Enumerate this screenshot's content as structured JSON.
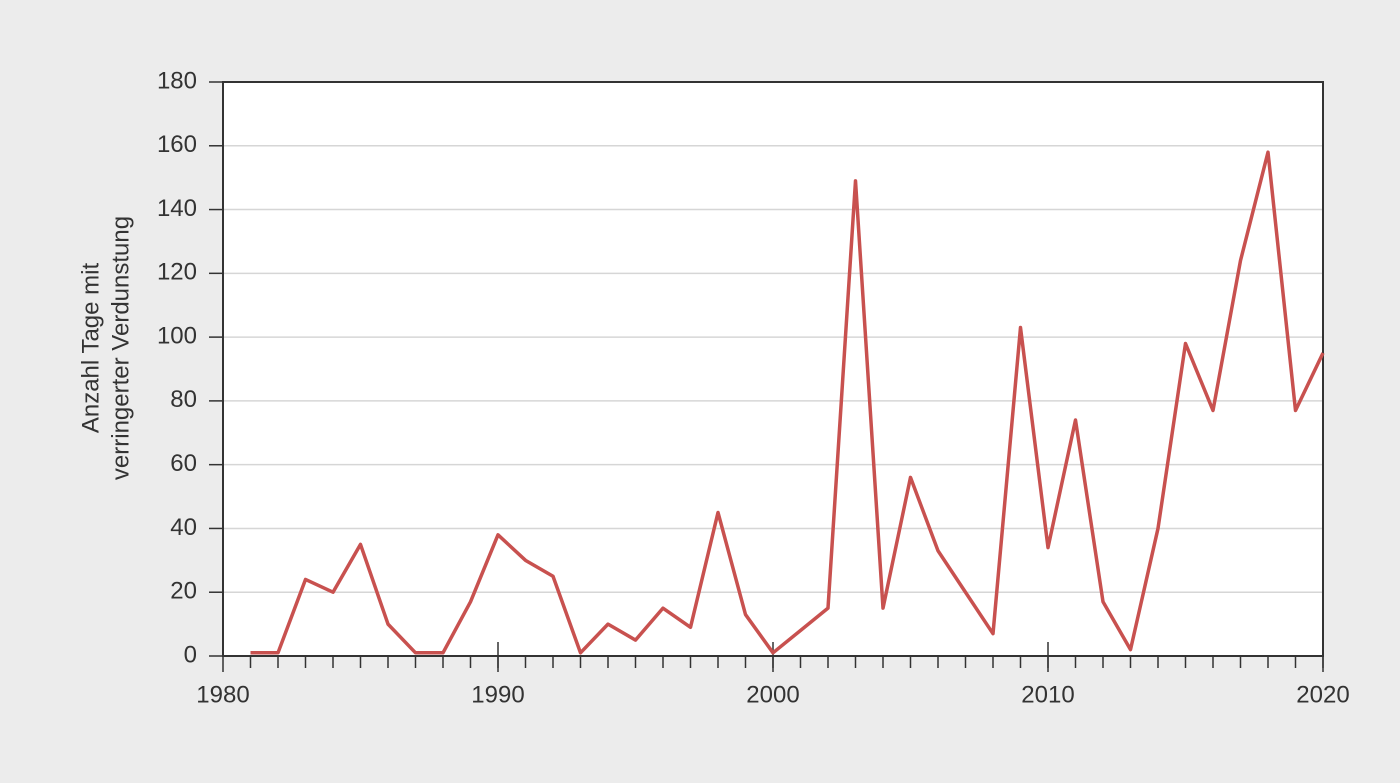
{
  "chart_data": {
    "type": "line",
    "ylabel": [
      "Anzahl Tage mit",
      "verringerter Verdunstung"
    ],
    "x": [
      1981,
      1982,
      1983,
      1984,
      1985,
      1986,
      1987,
      1988,
      1989,
      1990,
      1991,
      1992,
      1993,
      1994,
      1995,
      1996,
      1997,
      1998,
      1999,
      2000,
      2001,
      2002,
      2003,
      2004,
      2005,
      2006,
      2007,
      2008,
      2009,
      2010,
      2011,
      2012,
      2013,
      2014,
      2015,
      2016,
      2017,
      2018,
      2019,
      2020
    ],
    "series": [
      {
        "color": "#c8514f",
        "values": [
          1,
          1,
          24,
          20,
          35,
          10,
          1,
          1,
          17,
          38,
          30,
          25,
          1,
          10,
          5,
          15,
          9,
          45,
          13,
          1,
          8,
          15,
          149,
          15,
          56,
          33,
          20,
          7,
          103,
          34,
          74,
          17,
          2,
          40,
          98,
          77,
          124,
          158,
          77,
          95
        ]
      }
    ],
    "xlim": [
      1980,
      2020
    ],
    "xticks": [
      1980,
      1990,
      2000,
      2010,
      2020
    ],
    "ylim": [
      0,
      180
    ],
    "yticks": [
      0,
      20,
      40,
      60,
      80,
      100,
      120,
      140,
      160,
      180
    ],
    "grid": true
  }
}
